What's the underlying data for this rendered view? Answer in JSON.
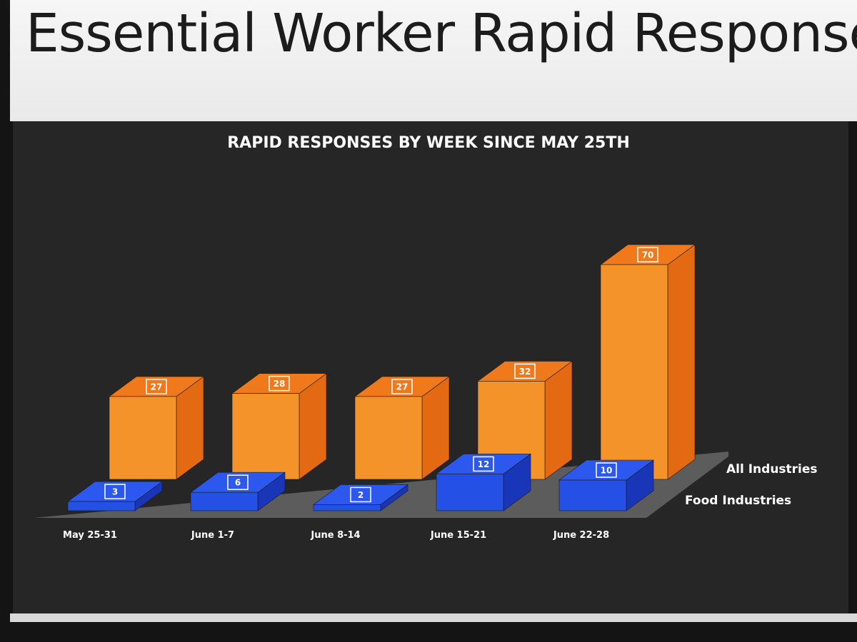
{
  "slide": {
    "title": "Essential Worker Rapid Response Tr"
  },
  "colors": {
    "all_front": "#f5932b",
    "all_side": "#e36a12",
    "all_top": "#f0791c",
    "food_front": "#2450e6",
    "food_side": "#1a36b8",
    "food_top": "#2c58ee",
    "floor": "#5c5c5c"
  },
  "chart_data": {
    "type": "bar",
    "title": "RAPID RESPONSES BY WEEK SINCE MAY 25TH",
    "categories": [
      "May 25-31",
      "June 1-7",
      "June 8-14",
      "June 15-21",
      "June 22-28"
    ],
    "series": [
      {
        "name": "All Industries",
        "values": [
          27,
          28,
          27,
          32,
          70
        ]
      },
      {
        "name": "Food Industries",
        "values": [
          3,
          6,
          2,
          12,
          10
        ]
      }
    ],
    "xlabel": "",
    "ylabel": "",
    "ylim": [
      0,
      70
    ],
    "grid": false,
    "style": "3d-column"
  }
}
